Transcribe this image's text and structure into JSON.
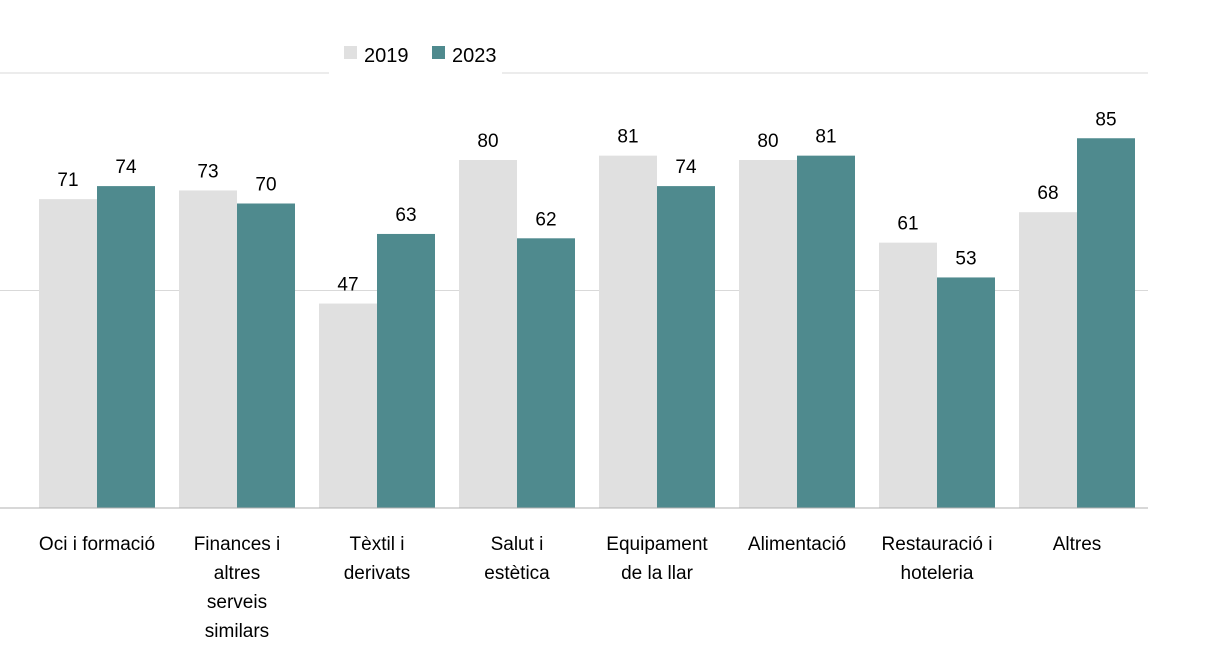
{
  "chart_data": {
    "type": "bar",
    "title": "",
    "xlabel": "",
    "ylabel": "",
    "ylim": [
      0,
      100
    ],
    "grid": true,
    "legend_position": "top",
    "categories": [
      "Oci i formació",
      "Finances i altres serveis similars",
      "Tèxtil i derivats",
      "Salut i estètica",
      "Equipament de la llar",
      "Alimentació",
      "Restauració i hoteleria",
      "Altres"
    ],
    "category_lines": [
      [
        "Oci i formació"
      ],
      [
        "Finances i",
        "altres",
        "serveis",
        "similars"
      ],
      [
        "Tèxtil i",
        "derivats"
      ],
      [
        "Salut i",
        "estètica"
      ],
      [
        "Equipament",
        "de la llar"
      ],
      [
        "Alimentació"
      ],
      [
        "Restauració i",
        "hoteleria"
      ],
      [
        "Altres"
      ]
    ],
    "series": [
      {
        "name": "2019",
        "color": "#e0e0e0",
        "values": [
          71,
          73,
          47,
          80,
          81,
          80,
          61,
          68
        ]
      },
      {
        "name": "2023",
        "color": "#4f8a8e",
        "values": [
          74,
          70,
          63,
          62,
          74,
          81,
          53,
          85
        ]
      }
    ]
  }
}
